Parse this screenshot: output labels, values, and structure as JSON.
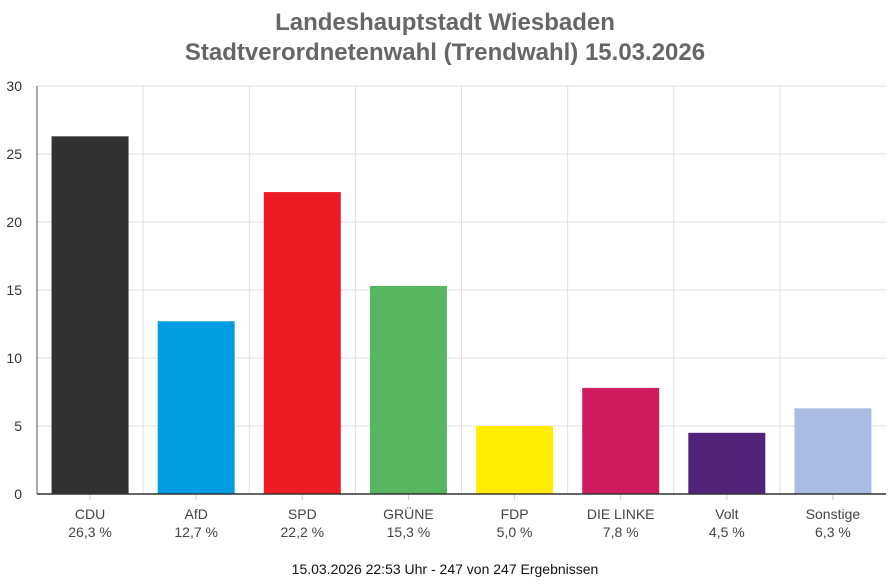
{
  "chart_data": {
    "type": "bar",
    "title": "Landeshauptstadt Wiesbaden",
    "subtitle": "Stadtverordnetenwahl (Trendwahl) 15.03.2026",
    "categories": [
      "CDU",
      "AfD",
      "SPD",
      "GRÜNE",
      "FDP",
      "DIE LINKE",
      "Volt",
      "Sonstige"
    ],
    "value_labels": [
      "26,3 %",
      "12,7 %",
      "22,2 %",
      "15,3 %",
      "5,0 %",
      "7,8 %",
      "4,5 %",
      "6,3 %"
    ],
    "values": [
      26.3,
      12.7,
      22.2,
      15.3,
      5.0,
      7.8,
      4.5,
      6.3
    ],
    "colors": [
      "#323031",
      "#009EE0",
      "#ED1C24",
      "#57B45F",
      "#FFED00",
      "#D01B5E",
      "#502379",
      "#AABCE3"
    ],
    "ylim": [
      0,
      30
    ],
    "yticks": [
      0,
      5,
      10,
      15,
      20,
      25,
      30
    ],
    "xlabel": "",
    "ylabel": "",
    "grid": true,
    "legend": "none"
  },
  "footer": "15.03.2026 22:53 Uhr - 247 von 247 Ergebnissen"
}
